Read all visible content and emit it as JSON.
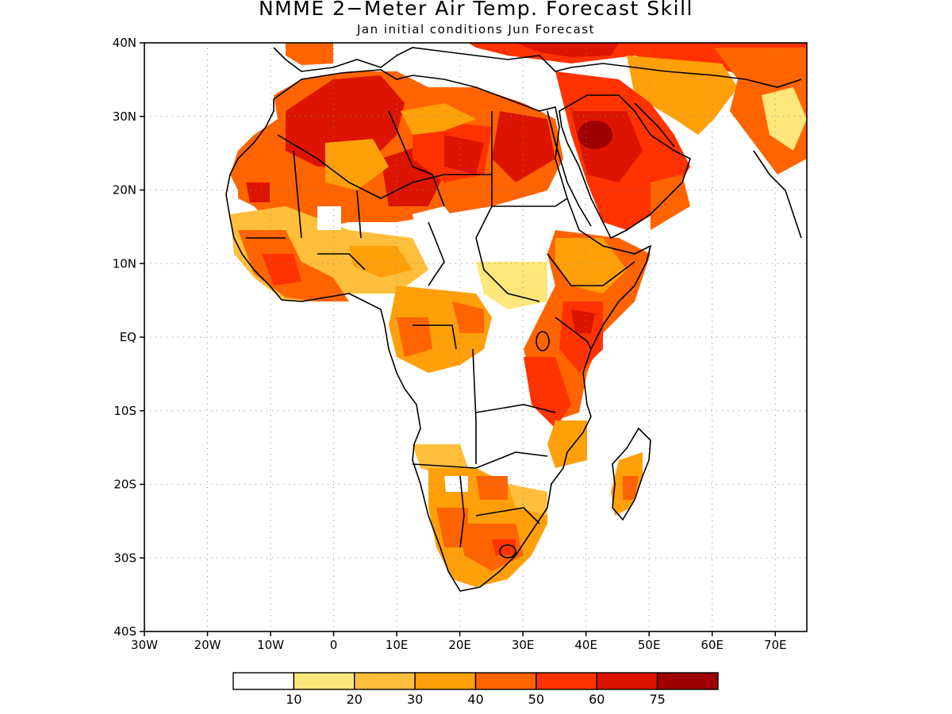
{
  "title": "NMME 2−Meter Air Temp. Forecast Skill",
  "subtitle": "Jan initial conditions   Jun Forecast",
  "map": {
    "lon_range": [
      -30,
      75
    ],
    "lat_range": [
      -40,
      40
    ],
    "grid": "dotted",
    "lat_ticks": [
      {
        "value": 40,
        "label": "40N"
      },
      {
        "value": 30,
        "label": "30N"
      },
      {
        "value": 20,
        "label": "20N"
      },
      {
        "value": 10,
        "label": "10N"
      },
      {
        "value": 0,
        "label": "EQ"
      },
      {
        "value": -10,
        "label": "10S"
      },
      {
        "value": -20,
        "label": "20S"
      },
      {
        "value": -30,
        "label": "30S"
      },
      {
        "value": -40,
        "label": "40S"
      }
    ],
    "lon_ticks": [
      {
        "value": -30,
        "label": "30W"
      },
      {
        "value": -20,
        "label": "20W"
      },
      {
        "value": -10,
        "label": "10W"
      },
      {
        "value": 0,
        "label": "0"
      },
      {
        "value": 10,
        "label": "10E"
      },
      {
        "value": 20,
        "label": "20E"
      },
      {
        "value": 30,
        "label": "30E"
      },
      {
        "value": 40,
        "label": "40E"
      },
      {
        "value": 50,
        "label": "50E"
      },
      {
        "value": 60,
        "label": "60E"
      },
      {
        "value": 70,
        "label": "70E"
      }
    ]
  },
  "legend": {
    "colors": [
      "#ffffff",
      "#ffe67a",
      "#ffbe3c",
      "#ffa00a",
      "#ff6400",
      "#ff3200",
      "#dc1400",
      "#a00000"
    ],
    "labels": [
      "10",
      "20",
      "30",
      "40",
      "50",
      "60",
      "75"
    ]
  }
}
